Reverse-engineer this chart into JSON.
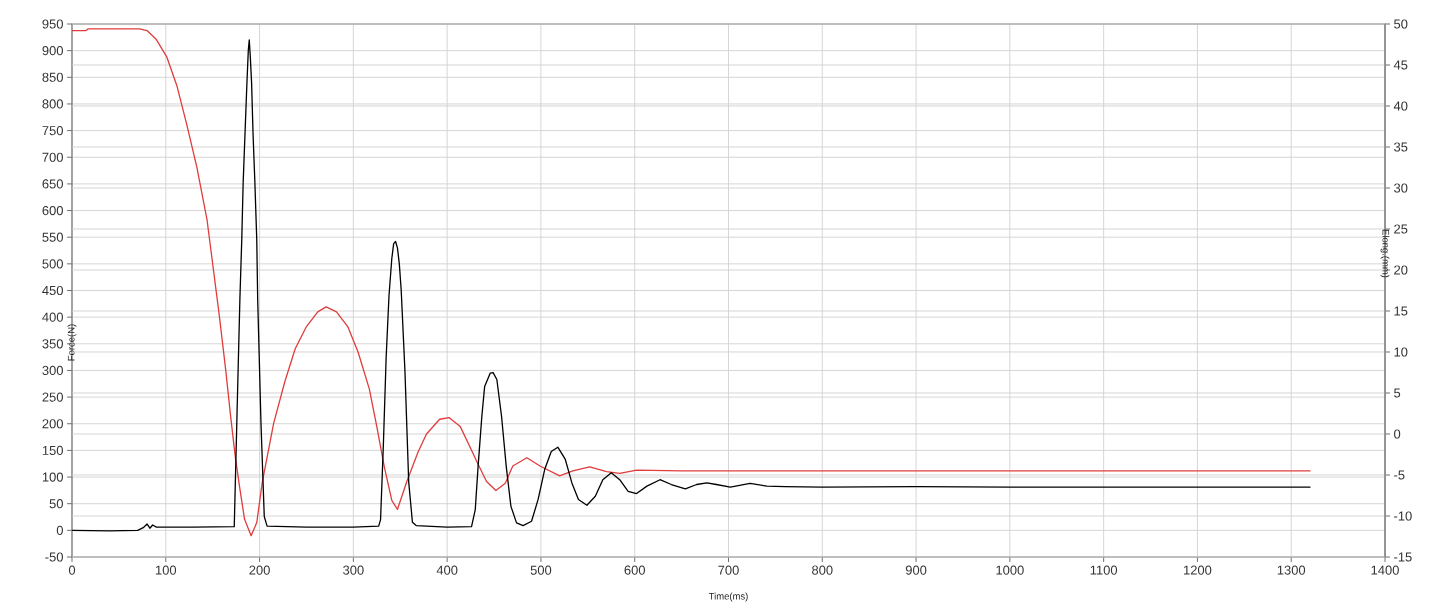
{
  "chart_data": {
    "type": "line",
    "xlabel": "Time(ms)",
    "ylabel": "Force(N)",
    "y2label": "Elong.(mm)",
    "xlim": [
      0,
      1400
    ],
    "xticks": [
      0,
      100,
      200,
      300,
      400,
      500,
      600,
      700,
      800,
      900,
      1000,
      1100,
      1200,
      1300,
      1400
    ],
    "ylim": [
      -50,
      950
    ],
    "yticks": [
      -50,
      0,
      50,
      100,
      150,
      200,
      250,
      300,
      350,
      400,
      450,
      500,
      550,
      600,
      650,
      700,
      750,
      800,
      850,
      900,
      950
    ],
    "y2lim": [
      -15,
      50
    ],
    "y2ticks": [
      -15,
      -10,
      -5,
      0,
      5,
      10,
      15,
      20,
      25,
      30,
      35,
      40,
      45,
      50
    ],
    "grid": true,
    "marker": "none",
    "line_style": "solid",
    "series": [
      {
        "color": "#e03c3c",
        "axis": "y2",
        "x": [
          0,
          15,
          17,
          72,
          80,
          90,
          101,
          112,
          122,
          133,
          144,
          157,
          164,
          169,
          174,
          179,
          184,
          191,
          197,
          203,
          215,
          227,
          238,
          250,
          262,
          271,
          282,
          294,
          305,
          317,
          325,
          333,
          341,
          347,
          357,
          369,
          378,
          392,
          402,
          414,
          424,
          433,
          442,
          452,
          462,
          470,
          485,
          499,
          520,
          534,
          552,
          570,
          584,
          602,
          650,
          700,
          800,
          900,
          1000,
          1100,
          1200,
          1320
        ],
        "values": [
          49.2,
          49.2,
          49.4,
          49.4,
          49.2,
          48.1,
          46.0,
          42.4,
          37.9,
          32.6,
          26.1,
          14.5,
          7.7,
          2.3,
          -2.7,
          -6.7,
          -10.4,
          -12.4,
          -10.8,
          -5.8,
          1.3,
          6.4,
          10.4,
          13.1,
          14.9,
          15.5,
          14.9,
          13.1,
          10.0,
          5.5,
          0.9,
          -4.0,
          -8.1,
          -9.2,
          -5.8,
          -2.2,
          0.0,
          1.8,
          2.0,
          0.9,
          -1.5,
          -3.7,
          -5.8,
          -6.9,
          -6.0,
          -3.9,
          -2.9,
          -3.9,
          -5.1,
          -4.5,
          -4.0,
          -4.6,
          -4.8,
          -4.4,
          -4.5,
          -4.5,
          -4.5,
          -4.5,
          -4.5,
          -4.5,
          -4.5,
          -4.5
        ]
      },
      {
        "color": "#000000",
        "x": [
          0,
          40,
          70,
          76,
          80,
          83,
          86,
          90,
          130,
          173,
          176,
          179,
          181,
          182.5,
          184.5,
          186.5,
          188,
          189,
          190,
          191.5,
          193,
          195,
          197,
          198,
          201.5,
          205,
          208,
          250,
          300,
          327,
          329,
          332,
          335,
          338,
          341,
          343,
          345,
          347,
          349,
          351,
          355,
          359,
          363,
          367,
          400,
          426,
          430,
          433,
          437,
          440,
          446,
          449,
          453,
          458,
          463,
          468,
          474,
          481,
          490,
          497,
          504,
          511,
          518,
          526,
          533,
          540,
          549,
          558,
          566,
          575,
          584,
          593,
          602,
          613,
          627,
          639,
          654,
          666,
          677,
          687,
          702,
          723,
          741,
          760,
          800,
          900,
          1000,
          1100,
          1200,
          1320
        ],
        "values": [
          0,
          -1,
          0,
          5,
          12,
          4,
          10,
          6,
          6,
          7,
          221,
          433,
          545,
          652,
          746,
          839,
          901,
          920,
          892,
          839,
          746,
          652,
          545,
          433,
          201,
          26,
          8,
          6,
          6,
          8,
          20,
          160,
          326,
          440,
          510,
          538,
          542,
          530,
          500,
          451,
          299,
          91,
          15,
          9,
          6,
          7,
          39,
          120,
          214,
          270,
          295,
          296,
          283,
          214,
          120,
          45,
          14,
          9,
          17,
          58,
          114,
          148,
          156,
          133,
          89,
          58,
          47,
          64,
          95,
          108,
          95,
          73,
          69,
          83,
          95,
          86,
          78,
          86,
          89,
          86,
          81,
          88,
          83,
          82,
          81,
          82,
          81,
          81,
          81,
          81
        ]
      }
    ]
  }
}
